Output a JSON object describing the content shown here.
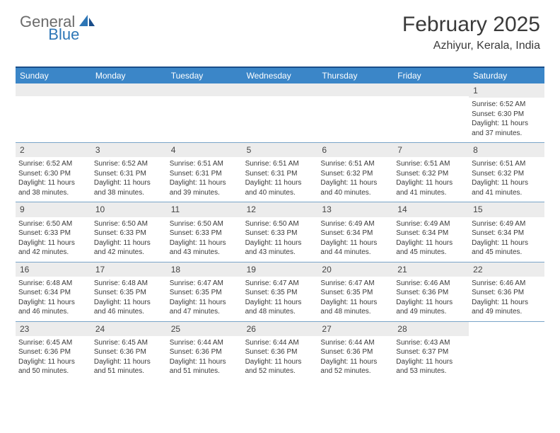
{
  "logo": {
    "general": "General",
    "blue": "Blue"
  },
  "title": "February 2025",
  "location": "Azhiyur, Kerala, India",
  "colors": {
    "header_bg": "#3b86c8",
    "header_border_top": "#1a4e8a",
    "row_border": "#7aa5c9",
    "daynum_bg": "#ececec",
    "text": "#3a3a3a",
    "logo_gray": "#6b6b6b",
    "logo_blue": "#2d76b6"
  },
  "day_names": [
    "Sunday",
    "Monday",
    "Tuesday",
    "Wednesday",
    "Thursday",
    "Friday",
    "Saturday"
  ],
  "weeks": [
    [
      {
        "n": "",
        "lines": []
      },
      {
        "n": "",
        "lines": []
      },
      {
        "n": "",
        "lines": []
      },
      {
        "n": "",
        "lines": []
      },
      {
        "n": "",
        "lines": []
      },
      {
        "n": "",
        "lines": []
      },
      {
        "n": "1",
        "lines": [
          "Sunrise: 6:52 AM",
          "Sunset: 6:30 PM",
          "Daylight: 11 hours and 37 minutes."
        ]
      }
    ],
    [
      {
        "n": "2",
        "lines": [
          "Sunrise: 6:52 AM",
          "Sunset: 6:30 PM",
          "Daylight: 11 hours and 38 minutes."
        ]
      },
      {
        "n": "3",
        "lines": [
          "Sunrise: 6:52 AM",
          "Sunset: 6:31 PM",
          "Daylight: 11 hours and 38 minutes."
        ]
      },
      {
        "n": "4",
        "lines": [
          "Sunrise: 6:51 AM",
          "Sunset: 6:31 PM",
          "Daylight: 11 hours and 39 minutes."
        ]
      },
      {
        "n": "5",
        "lines": [
          "Sunrise: 6:51 AM",
          "Sunset: 6:31 PM",
          "Daylight: 11 hours and 40 minutes."
        ]
      },
      {
        "n": "6",
        "lines": [
          "Sunrise: 6:51 AM",
          "Sunset: 6:32 PM",
          "Daylight: 11 hours and 40 minutes."
        ]
      },
      {
        "n": "7",
        "lines": [
          "Sunrise: 6:51 AM",
          "Sunset: 6:32 PM",
          "Daylight: 11 hours and 41 minutes."
        ]
      },
      {
        "n": "8",
        "lines": [
          "Sunrise: 6:51 AM",
          "Sunset: 6:32 PM",
          "Daylight: 11 hours and 41 minutes."
        ]
      }
    ],
    [
      {
        "n": "9",
        "lines": [
          "Sunrise: 6:50 AM",
          "Sunset: 6:33 PM",
          "Daylight: 11 hours and 42 minutes."
        ]
      },
      {
        "n": "10",
        "lines": [
          "Sunrise: 6:50 AM",
          "Sunset: 6:33 PM",
          "Daylight: 11 hours and 42 minutes."
        ]
      },
      {
        "n": "11",
        "lines": [
          "Sunrise: 6:50 AM",
          "Sunset: 6:33 PM",
          "Daylight: 11 hours and 43 minutes."
        ]
      },
      {
        "n": "12",
        "lines": [
          "Sunrise: 6:50 AM",
          "Sunset: 6:33 PM",
          "Daylight: 11 hours and 43 minutes."
        ]
      },
      {
        "n": "13",
        "lines": [
          "Sunrise: 6:49 AM",
          "Sunset: 6:34 PM",
          "Daylight: 11 hours and 44 minutes."
        ]
      },
      {
        "n": "14",
        "lines": [
          "Sunrise: 6:49 AM",
          "Sunset: 6:34 PM",
          "Daylight: 11 hours and 45 minutes."
        ]
      },
      {
        "n": "15",
        "lines": [
          "Sunrise: 6:49 AM",
          "Sunset: 6:34 PM",
          "Daylight: 11 hours and 45 minutes."
        ]
      }
    ],
    [
      {
        "n": "16",
        "lines": [
          "Sunrise: 6:48 AM",
          "Sunset: 6:34 PM",
          "Daylight: 11 hours and 46 minutes."
        ]
      },
      {
        "n": "17",
        "lines": [
          "Sunrise: 6:48 AM",
          "Sunset: 6:35 PM",
          "Daylight: 11 hours and 46 minutes."
        ]
      },
      {
        "n": "18",
        "lines": [
          "Sunrise: 6:47 AM",
          "Sunset: 6:35 PM",
          "Daylight: 11 hours and 47 minutes."
        ]
      },
      {
        "n": "19",
        "lines": [
          "Sunrise: 6:47 AM",
          "Sunset: 6:35 PM",
          "Daylight: 11 hours and 48 minutes."
        ]
      },
      {
        "n": "20",
        "lines": [
          "Sunrise: 6:47 AM",
          "Sunset: 6:35 PM",
          "Daylight: 11 hours and 48 minutes."
        ]
      },
      {
        "n": "21",
        "lines": [
          "Sunrise: 6:46 AM",
          "Sunset: 6:36 PM",
          "Daylight: 11 hours and 49 minutes."
        ]
      },
      {
        "n": "22",
        "lines": [
          "Sunrise: 6:46 AM",
          "Sunset: 6:36 PM",
          "Daylight: 11 hours and 49 minutes."
        ]
      }
    ],
    [
      {
        "n": "23",
        "lines": [
          "Sunrise: 6:45 AM",
          "Sunset: 6:36 PM",
          "Daylight: 11 hours and 50 minutes."
        ]
      },
      {
        "n": "24",
        "lines": [
          "Sunrise: 6:45 AM",
          "Sunset: 6:36 PM",
          "Daylight: 11 hours and 51 minutes."
        ]
      },
      {
        "n": "25",
        "lines": [
          "Sunrise: 6:44 AM",
          "Sunset: 6:36 PM",
          "Daylight: 11 hours and 51 minutes."
        ]
      },
      {
        "n": "26",
        "lines": [
          "Sunrise: 6:44 AM",
          "Sunset: 6:36 PM",
          "Daylight: 11 hours and 52 minutes."
        ]
      },
      {
        "n": "27",
        "lines": [
          "Sunrise: 6:44 AM",
          "Sunset: 6:36 PM",
          "Daylight: 11 hours and 52 minutes."
        ]
      },
      {
        "n": "28",
        "lines": [
          "Sunrise: 6:43 AM",
          "Sunset: 6:37 PM",
          "Daylight: 11 hours and 53 minutes."
        ]
      },
      {
        "n": "",
        "lines": []
      }
    ]
  ]
}
